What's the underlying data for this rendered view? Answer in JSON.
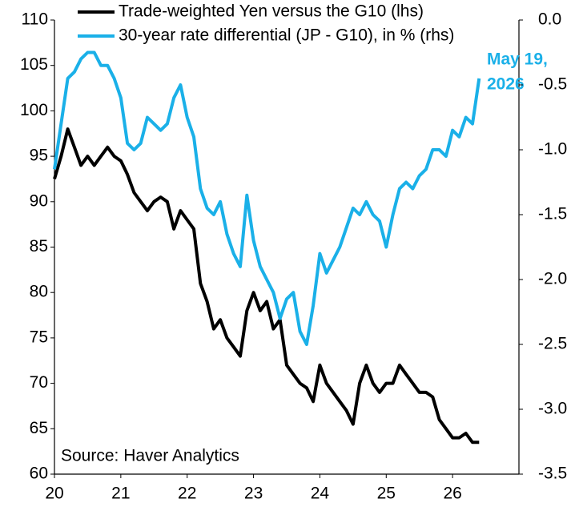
{
  "chart_data": {
    "type": "line",
    "legend": "top-left",
    "x": [
      20.0,
      20.1,
      20.2,
      20.3,
      20.4,
      20.5,
      20.6,
      20.7,
      20.8,
      20.9,
      21.0,
      21.1,
      21.2,
      21.3,
      21.4,
      21.5,
      21.6,
      21.7,
      21.8,
      21.9,
      22.0,
      22.1,
      22.2,
      22.3,
      22.4,
      22.5,
      22.6,
      22.7,
      22.8,
      22.9,
      23.0,
      23.1,
      23.2,
      23.3,
      23.4,
      23.5,
      23.6,
      23.7,
      23.8,
      23.9,
      24.0,
      24.1,
      24.2,
      24.3,
      24.4,
      24.5,
      24.6,
      24.7,
      24.8,
      24.9,
      25.0,
      25.1,
      25.2,
      25.3,
      25.4,
      25.5,
      25.6,
      25.7,
      25.8,
      25.9,
      26.0,
      26.1,
      26.2,
      26.3,
      26.4
    ],
    "series": [
      {
        "name": "Trade-weighted Yen versus the G10 (lhs)",
        "color": "#000000",
        "values": [
          92.5,
          95,
          98,
          96,
          94,
          95,
          94,
          95,
          96,
          95,
          94.5,
          93,
          91,
          90,
          89,
          90,
          90.5,
          90,
          87,
          89,
          88,
          87,
          81,
          79,
          76,
          77,
          75,
          74,
          73,
          78,
          80,
          78,
          79,
          76,
          77,
          72,
          71,
          70,
          69.5,
          68,
          72,
          70,
          69,
          68,
          67,
          65.5,
          70,
          72,
          70,
          69,
          70,
          70,
          72,
          71,
          70,
          69,
          69,
          68.5,
          66,
          65,
          64,
          64,
          64.5,
          63.5,
          63.5
        ]
      },
      {
        "name": "30-year rate differential (JP - G10), in % (rhs)",
        "color": "#1ab0e8",
        "axis": "y2",
        "values": [
          -1.15,
          -0.8,
          -0.45,
          -0.4,
          -0.3,
          -0.25,
          -0.25,
          -0.35,
          -0.35,
          -0.45,
          -0.6,
          -0.95,
          -1.0,
          -0.95,
          -0.75,
          -0.8,
          -0.85,
          -0.8,
          -0.6,
          -0.5,
          -0.75,
          -0.9,
          -1.3,
          -1.45,
          -1.5,
          -1.4,
          -1.65,
          -1.8,
          -1.9,
          -1.35,
          -1.7,
          -1.9,
          -2.0,
          -2.1,
          -2.3,
          -2.15,
          -2.1,
          -2.4,
          -2.5,
          -2.2,
          -1.8,
          -1.95,
          -1.85,
          -1.75,
          -1.6,
          -1.45,
          -1.5,
          -1.4,
          -1.5,
          -1.55,
          -1.75,
          -1.5,
          -1.3,
          -1.25,
          -1.3,
          -1.2,
          -1.15,
          -1.0,
          -1.0,
          -1.05,
          -0.85,
          -0.9,
          -0.75,
          -0.8,
          -0.45
        ]
      }
    ],
    "xlim": [
      20,
      27
    ],
    "xticks": [
      20,
      21,
      22,
      23,
      24,
      25,
      26
    ],
    "ylim": [
      60,
      110
    ],
    "yticks": [
      60,
      65,
      70,
      75,
      80,
      85,
      90,
      95,
      100,
      105,
      110
    ],
    "y2lim": [
      -3.5,
      0
    ],
    "y2ticks": [
      -3.5,
      {
        "value": -3,
        "label": "-3.0"
      },
      -2.5,
      {
        "value": -2,
        "label": "-2.0"
      },
      -1.5,
      {
        "value": -1,
        "label": "-1.0"
      },
      -0.5,
      {
        "value": 0,
        "label": "0.0"
      }
    ],
    "annotations": [
      "May 19,",
      "2026"
    ],
    "source": "Source: Haver Analytics"
  }
}
